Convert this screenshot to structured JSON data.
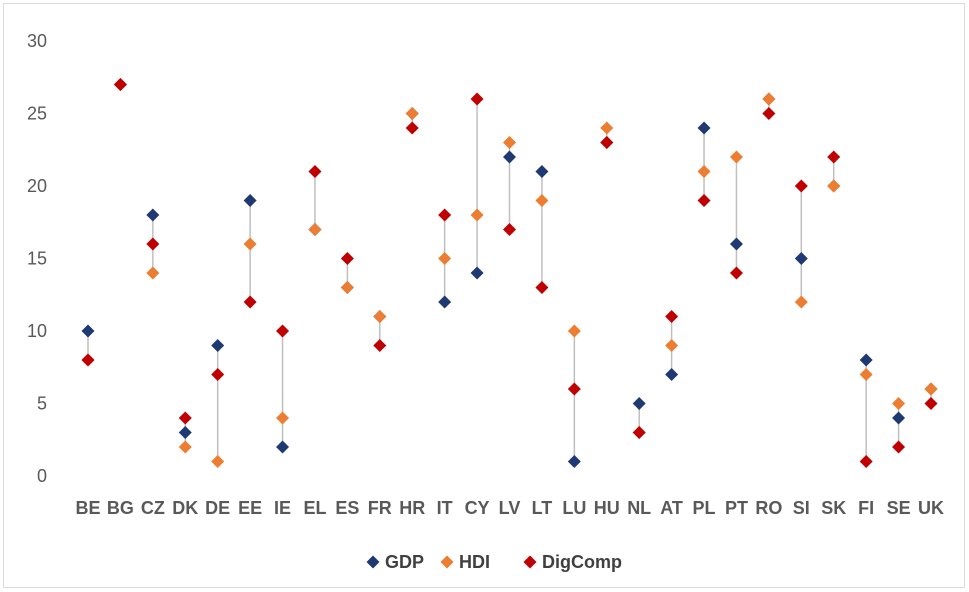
{
  "chart_data": {
    "type": "scatter",
    "categories": [
      "BE",
      "BG",
      "CZ",
      "DK",
      "DE",
      "EE",
      "IE",
      "EL",
      "ES",
      "FR",
      "HR",
      "IT",
      "CY",
      "LV",
      "LT",
      "LU",
      "HU",
      "NL",
      "AT",
      "PL",
      "PT",
      "RO",
      "SI",
      "SK",
      "FI",
      "SE",
      "UK"
    ],
    "series": [
      {
        "name": "GDP",
        "color": "#1f3a73",
        "values": [
          10,
          27,
          18,
          3,
          9,
          19,
          2,
          17,
          13,
          11,
          25,
          12,
          14,
          22,
          21,
          1,
          23,
          5,
          7,
          24,
          16,
          26,
          15,
          20,
          8,
          4,
          6
        ]
      },
      {
        "name": "HDI",
        "color": "#ed7d31",
        "values": [
          8,
          27,
          14,
          2,
          1,
          16,
          4,
          17,
          13,
          11,
          25,
          15,
          18,
          23,
          19,
          10,
          24,
          3,
          9,
          21,
          22,
          26,
          12,
          20,
          7,
          5,
          6
        ]
      },
      {
        "name": "DigComp",
        "color": "#c00000",
        "values": [
          8,
          27,
          16,
          4,
          7,
          12,
          10,
          21,
          15,
          9,
          24,
          18,
          26,
          17,
          13,
          6,
          23,
          3,
          11,
          19,
          14,
          25,
          20,
          22,
          1,
          2,
          5
        ]
      }
    ],
    "y_ticks": [
      "0",
      "5",
      "10",
      "15",
      "20",
      "25",
      "30"
    ],
    "ylim": [
      0,
      30
    ],
    "grid": false,
    "legend_position": "bottom",
    "range_line_color": "#bfbfbf",
    "marker": "diamond"
  }
}
